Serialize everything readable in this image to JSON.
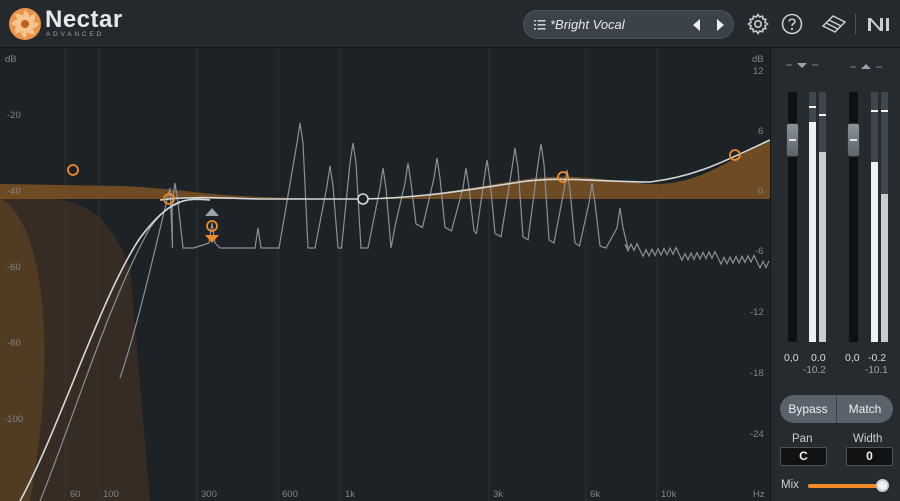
{
  "app": {
    "name": "Nectar",
    "edition": "ADVANCED"
  },
  "preset": {
    "name": "*Bright Vocal",
    "list_icon": "list-icon",
    "prev_icon": "triangle-left-icon",
    "next_icon": "triangle-right-icon"
  },
  "header_icons": [
    "gear-icon",
    "help-icon",
    "resize-icon",
    "ni-logo-icon"
  ],
  "eq": {
    "left_axis": [
      "dB",
      "-20",
      "-40",
      "-60",
      "-80",
      "-100"
    ],
    "right_axis": [
      "dB",
      "12",
      "6",
      "0",
      "-6",
      "-12",
      "-18",
      "-24"
    ],
    "freq_axis": [
      "60",
      "100",
      "300",
      "600",
      "1k",
      "3k",
      "6k",
      "10k",
      "Hz"
    ],
    "colors": {
      "accent": "#f08c29",
      "curve": "#d5d8da",
      "spectrum": "#8a9096",
      "fill": "#8a5a22"
    }
  },
  "meters": {
    "input": {
      "fader_value": "0,0",
      "peak": "0.0",
      "rms": "-10.2"
    },
    "output": {
      "fader_value": "0,0",
      "peak": "-0.2",
      "rms": "-10.1"
    },
    "input_arrow_icon": "triangle-down-icon",
    "output_arrow_icon": "triangle-up-icon"
  },
  "controls": {
    "bypass_label": "Bypass",
    "match_label": "Match",
    "pan_label": "Pan",
    "pan_value": "C",
    "width_label": "Width",
    "width_value": "0",
    "mix_label": "Mix",
    "mix_level": 0.95
  }
}
